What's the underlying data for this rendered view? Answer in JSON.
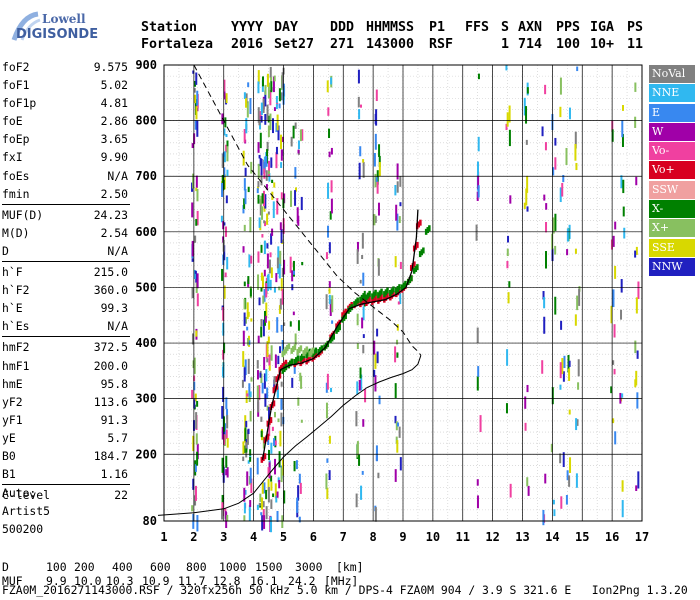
{
  "logo": {
    "line1": "Lowell",
    "line2": "DIGISONDE"
  },
  "header": {
    "labels": [
      "Station",
      "YYYY",
      "DAY",
      "DDD",
      "HHMMSS",
      "P1",
      "FFS",
      "S",
      "AXN",
      "PPS",
      "IGA",
      "PS"
    ],
    "values": [
      "Fortaleza",
      "2016",
      "Set27",
      "271",
      "143000",
      "RSF",
      "",
      "1",
      "714",
      "100",
      "10+",
      "11"
    ]
  },
  "params": [
    [
      {
        "k": "foF2",
        "v": "9.575"
      },
      {
        "k": "foF1",
        "v": "5.02"
      },
      {
        "k": "foF1p",
        "v": "4.81"
      },
      {
        "k": "foE",
        "v": "2.86"
      },
      {
        "k": "foEp",
        "v": "3.65"
      },
      {
        "k": "fxI",
        "v": "9.90"
      },
      {
        "k": "foEs",
        "v": "N/A"
      },
      {
        "k": "fmin",
        "v": "2.50"
      }
    ],
    [
      {
        "k": "MUF(D)",
        "v": "24.23"
      },
      {
        "k": "M(D)",
        "v": "2.54"
      },
      {
        "k": "D",
        "v": "N/A"
      }
    ],
    [
      {
        "k": "h`F",
        "v": "215.0"
      },
      {
        "k": "h`F2",
        "v": "360.0"
      },
      {
        "k": "h`E",
        "v": "99.3"
      },
      {
        "k": "h`Es",
        "v": "N/A"
      }
    ],
    [
      {
        "k": "hmF2",
        "v": "372.5"
      },
      {
        "k": "hmF1",
        "v": "200.0"
      },
      {
        "k": "hmE",
        "v": "95.8"
      },
      {
        "k": "yF2",
        "v": "113.6"
      },
      {
        "k": "yF1",
        "v": "91.3"
      },
      {
        "k": "yE",
        "v": "5.7"
      },
      {
        "k": "B0",
        "v": "184.7"
      },
      {
        "k": "B1",
        "v": "1.16"
      }
    ],
    [
      {
        "k": "C-level",
        "v": "22"
      }
    ]
  ],
  "autoscaling": [
    "Auto:",
    "Artist5",
    "500200"
  ],
  "legend": [
    {
      "label": "NoVal",
      "color": "#808080"
    },
    {
      "label": "NNE",
      "color": "#30b8f0"
    },
    {
      "label": "E",
      "color": "#3888f0"
    },
    {
      "label": "W",
      "color": "#a000a8"
    },
    {
      "label": "Vo-",
      "color": "#f040a0"
    },
    {
      "label": "Vo+",
      "color": "#d80020"
    },
    {
      "label": "SSW",
      "color": "#f0a0a0"
    },
    {
      "label": "X-",
      "color": "#008000"
    },
    {
      "label": "X+",
      "color": "#88c060"
    },
    {
      "label": "SSE",
      "color": "#d8d800"
    },
    {
      "label": "NNW",
      "color": "#2020c0"
    }
  ],
  "table": {
    "D_label": "D",
    "D_values": [
      "100",
      "200",
      "400",
      "600",
      "800",
      "1000",
      "1500",
      "3000",
      "[km]"
    ],
    "MUF_label": "MUF",
    "MUF_values": [
      "9.9",
      "10.0",
      "10.3",
      "10.9",
      "11.7",
      "12.8",
      "16.1",
      "24.2",
      "[MHz]"
    ]
  },
  "footer": "FZA0M_2016271143000.RSF / 320fx256h 50 kHz 5.0 km / DPS-4 FZA0M 904 / 3.9 S 321.6 E   Ion2Png 1.3.20",
  "chart_data": {
    "type": "scatter",
    "x_ticks": [
      1,
      2,
      3,
      4,
      5,
      6,
      7,
      8,
      9,
      10,
      11,
      12,
      13,
      14,
      15,
      16,
      17
    ],
    "y_ticks": [
      80,
      200,
      300,
      400,
      500,
      600,
      700,
      800,
      900
    ],
    "xlim": [
      1,
      17
    ],
    "ylim": [
      80,
      900
    ],
    "grid": true,
    "series": [
      {
        "name": "Vo-",
        "color": "#d80020",
        "x": [
          4.3,
          4.4,
          4.5,
          4.6,
          4.7,
          4.8,
          4.9,
          5.0,
          5.2,
          5.4,
          5.6,
          5.8,
          6.0,
          6.2,
          6.4,
          6.6,
          6.8,
          7.0,
          7.2,
          7.4,
          7.6,
          7.8,
          8.0,
          8.2,
          8.4,
          8.6,
          8.8,
          9.0,
          9.2,
          9.3,
          9.4,
          9.5
        ],
        "y": [
          190,
          225,
          255,
          285,
          315,
          335,
          352,
          358,
          360,
          362,
          364,
          367,
          372,
          380,
          392,
          410,
          430,
          450,
          462,
          468,
          470,
          472,
          474,
          476,
          478,
          482,
          488,
          496,
          510,
          535,
          570,
          610
        ]
      },
      {
        "name": "X-",
        "color": "#008000",
        "x": [
          5.0,
          5.2,
          5.4,
          5.6,
          5.8,
          6.0,
          6.2,
          6.4,
          6.6,
          6.8,
          7.0,
          7.2,
          7.4,
          7.6,
          7.8,
          8.0,
          8.2,
          8.4,
          8.6,
          8.8,
          9.0,
          9.2,
          9.4,
          9.6,
          9.8
        ],
        "y": [
          350,
          360,
          366,
          372,
          378,
          380,
          384,
          392,
          405,
          422,
          442,
          458,
          470,
          478,
          482,
          484,
          486,
          488,
          490,
          494,
          500,
          510,
          530,
          560,
          600
        ]
      },
      {
        "name": "X+",
        "color": "#88c060",
        "x": [
          5.0,
          5.1,
          5.3,
          5.5,
          5.7,
          5.9
        ],
        "y": [
          380,
          388,
          386,
          384,
          382,
          380
        ]
      }
    ],
    "profile_solid": {
      "x": [
        0.8,
        2.0,
        3.0,
        3.5,
        4.0,
        4.3,
        4.6,
        5.0,
        5.4,
        5.8,
        6.2,
        6.6,
        7.0,
        7.4,
        7.8,
        8.2,
        8.6,
        9.0,
        9.3,
        9.5,
        9.6
      ],
      "y": [
        90,
        95,
        102,
        112,
        130,
        150,
        170,
        195,
        215,
        232,
        250,
        268,
        288,
        305,
        320,
        330,
        338,
        345,
        352,
        362,
        378
      ]
    },
    "profile_dashed": {
      "x": [
        2.0,
        2.6,
        3.2,
        3.8,
        4.4,
        5.0,
        5.6,
        6.2,
        6.8,
        7.4,
        8.0,
        8.6,
        9.0,
        9.3,
        9.5,
        9.6
      ],
      "y": [
        900,
        840,
        780,
        720,
        680,
        640,
        600,
        560,
        520,
        490,
        465,
        440,
        420,
        395,
        385,
        378
      ]
    },
    "trace_fit": {
      "x": [
        4.3,
        4.6,
        4.9,
        5.2,
        5.6,
        6.0,
        6.4,
        6.8,
        7.2,
        7.6,
        8.0,
        8.4,
        8.8,
        9.1,
        9.3,
        9.45,
        9.5
      ],
      "y": [
        190,
        285,
        352,
        360,
        364,
        372,
        392,
        430,
        462,
        470,
        474,
        478,
        488,
        500,
        530,
        590,
        640
      ]
    }
  }
}
